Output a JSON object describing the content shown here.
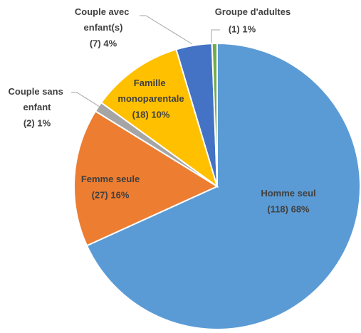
{
  "chart_data": {
    "type": "pie",
    "categories": [
      "Homme seul",
      "Femme seule",
      "Couple sans enfant",
      "Famille monoparentale",
      "Couple avec enfant(s)",
      "Groupe d'adultes"
    ],
    "values": [
      118,
      27,
      2,
      18,
      7,
      1
    ],
    "value_labels": [
      "(118) 68%",
      "(27) 16%",
      "(2) 1%",
      "(18) 10%",
      "(7) 4%",
      "(1) 1%"
    ],
    "colors": [
      "#5b9bd5",
      "#ed7d31",
      "#a5a5a5",
      "#ffc000",
      "#4472c4",
      "#70ad47"
    ]
  }
}
